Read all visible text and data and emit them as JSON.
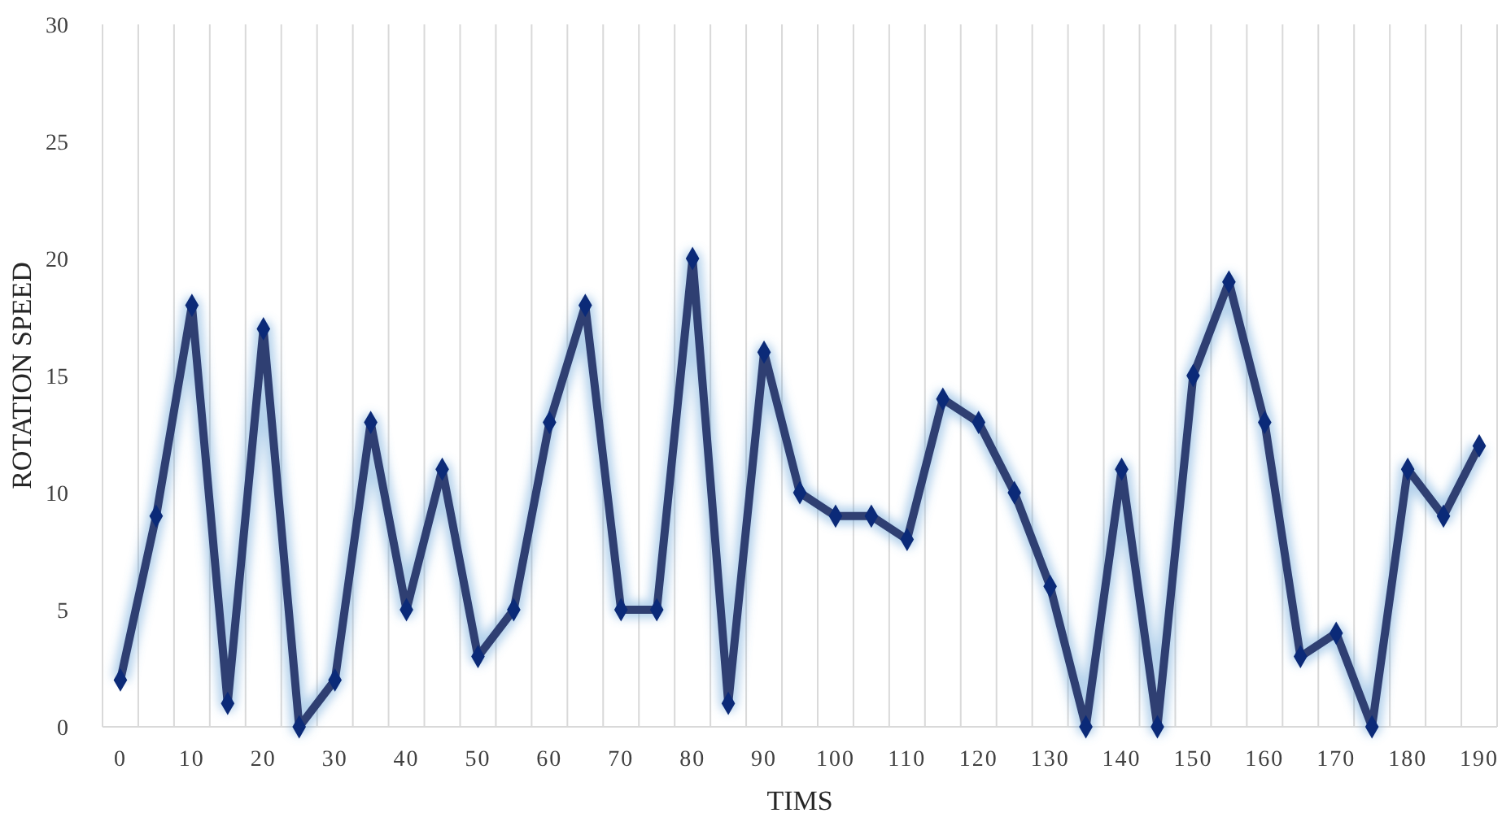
{
  "chart_data": {
    "type": "line",
    "xlabel": "TIMS",
    "ylabel": "ROTATION SPEED",
    "categories": [
      "0",
      null,
      "10",
      null,
      "20",
      null,
      "30",
      null,
      "40",
      null,
      "50",
      null,
      "60",
      null,
      "70",
      null,
      "80",
      null,
      "90",
      null,
      "100",
      null,
      "110",
      null,
      "120",
      null,
      "130",
      null,
      "140",
      null,
      "150",
      null,
      "160",
      null,
      "170",
      null,
      "180",
      null,
      "190"
    ],
    "series": [
      {
        "color": "#2f3f72",
        "values": [
          2,
          9,
          18,
          1,
          17,
          0,
          2,
          13,
          5,
          11,
          3,
          5,
          13,
          18,
          5,
          5,
          20,
          1,
          16,
          10,
          9,
          9,
          8,
          14,
          13,
          10,
          6,
          0,
          11,
          0,
          15,
          19,
          13,
          3,
          4,
          0,
          11,
          9,
          12
        ]
      }
    ],
    "ylim": [
      0,
      30
    ],
    "yticks": [
      0,
      5,
      10,
      15,
      20,
      25,
      30
    ],
    "grid": "x",
    "marker": "diamond",
    "line_style": "solid"
  }
}
